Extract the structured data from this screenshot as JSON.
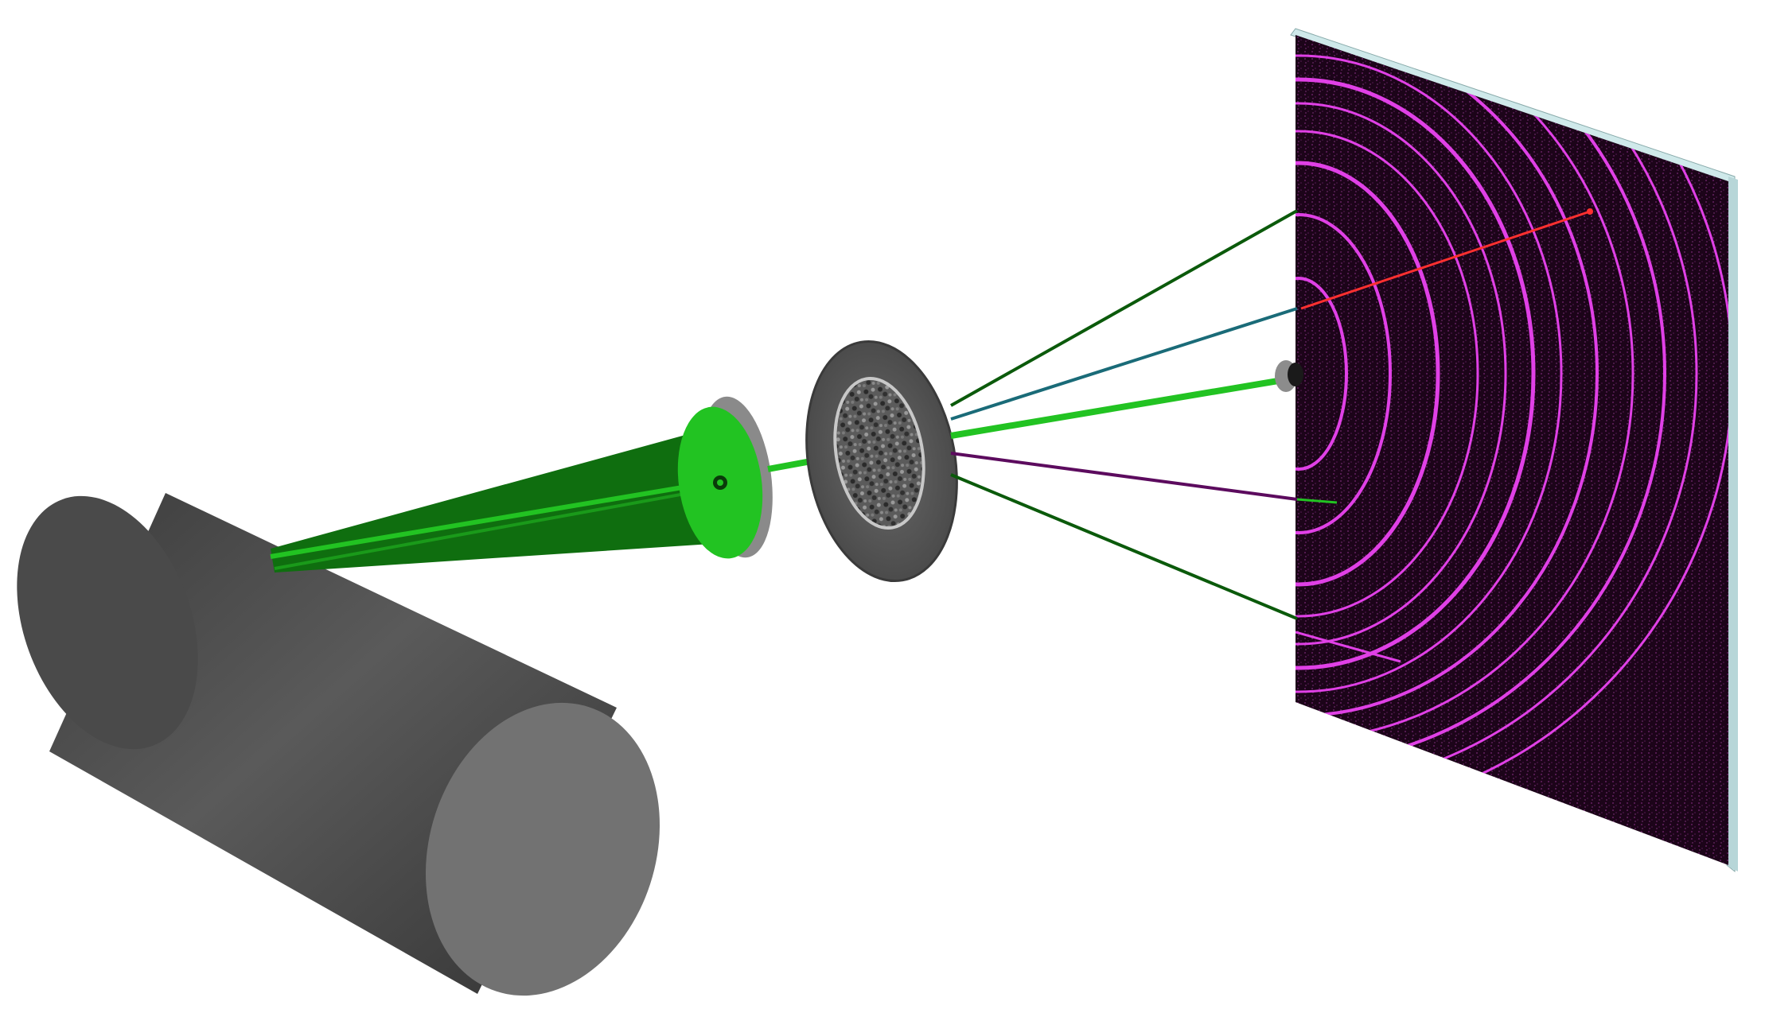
{
  "diagram": {
    "components": [
      {
        "id": "source",
        "kind": "cylinder"
      },
      {
        "id": "collimator",
        "kind": "pinhole-disc"
      },
      {
        "id": "sample-holder",
        "kind": "disc"
      },
      {
        "id": "beam-stop",
        "kind": "small-disc"
      },
      {
        "id": "detector",
        "kind": "flat-panel"
      }
    ],
    "rays": [
      {
        "id": "ray-top-outer",
        "color": "#0b5a0b"
      },
      {
        "id": "ray-upper-cyan",
        "color": "#1a6b78"
      },
      {
        "id": "ray-center-green",
        "color": "#22c322"
      },
      {
        "id": "ray-lower-purple",
        "color": "#5c0b5e"
      },
      {
        "id": "ray-bottom-outer",
        "color": "#0b5a0b"
      }
    ],
    "colors": {
      "cylinder": "#4a4a4a",
      "cylinder_cap": "#727272",
      "beam_cone": "#0f6e0f",
      "beam_bright": "#22c322",
      "disc": "#555555",
      "detector_bg": "#1a0418",
      "ring": "#e040e6",
      "detector_edge": "#cfe9ea",
      "radius_marker": "#ff3030"
    }
  }
}
